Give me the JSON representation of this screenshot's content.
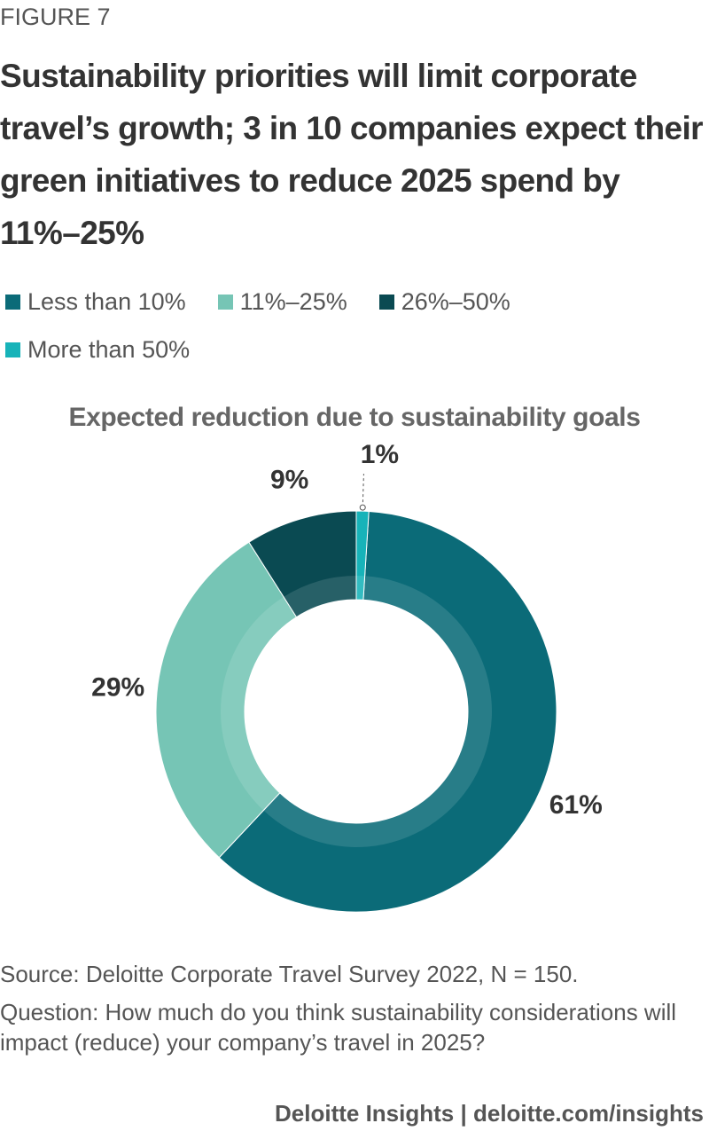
{
  "figure_label": "FIGURE 7",
  "chart_data": {
    "type": "pie",
    "title": "Sustainability priorities will limit corporate travel’s growth; 3 in 10 companies expect their green initiatives to reduce 2025 spend by 11%–25%",
    "subtitle": "Expected reduction due to sustainability goals",
    "categories": [
      "Less than 10%",
      "11%–25%",
      "26%–50%",
      "More than 50%"
    ],
    "values": [
      61,
      29,
      9,
      1
    ],
    "value_labels": [
      "61%",
      "29%",
      "9%",
      "1%"
    ],
    "colors": [
      "#0b6b78",
      "#76c5b5",
      "#0a4a52",
      "#17b3b9"
    ],
    "donut": true
  },
  "source": "Source: Deloitte Corporate Travel Survey 2022, N = 150.",
  "question": "Question: How much do you think sustainability considerations will impact (reduce) your company’s travel in 2025?",
  "branding": "Deloitte Insights | deloitte.com/insights"
}
